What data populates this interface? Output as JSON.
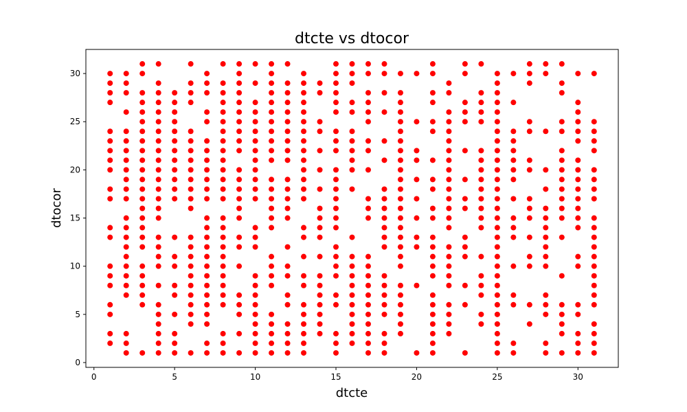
{
  "chart_data": {
    "type": "scatter",
    "title": "dtcte vs dtocor",
    "xlabel": "dtcte",
    "ylabel": "dtocor",
    "xlim": [
      -0.5,
      32.5
    ],
    "ylim": [
      -0.5,
      32.5
    ],
    "xticks": [
      0,
      5,
      10,
      15,
      20,
      25,
      30
    ],
    "yticks": [
      0,
      5,
      10,
      15,
      20,
      25,
      30
    ],
    "grid": false,
    "marker_color": "#ff0000",
    "series": [
      {
        "points_by_x": {
          "1": [
            2,
            3,
            5,
            6,
            8,
            9,
            10,
            13,
            14,
            17,
            18,
            20,
            21,
            22,
            23,
            24,
            27,
            28,
            29,
            30
          ],
          "2": [
            1,
            2,
            3,
            7,
            8,
            9,
            10,
            11,
            12,
            13,
            14,
            15,
            17,
            18,
            19,
            20,
            21,
            22,
            23,
            24,
            26,
            28,
            29,
            30
          ],
          "3": [
            1,
            6,
            7,
            8,
            9,
            10,
            12,
            13,
            14,
            15,
            16,
            17,
            18,
            19,
            20,
            21,
            22,
            23,
            24,
            25,
            26,
            27,
            28,
            30,
            31
          ],
          "4": [
            1,
            2,
            3,
            4,
            5,
            6,
            8,
            10,
            11,
            12,
            13,
            15,
            16,
            17,
            18,
            19,
            20,
            21,
            22,
            23,
            24,
            25,
            26,
            27,
            28,
            29,
            31
          ],
          "5": [
            1,
            2,
            3,
            5,
            7,
            8,
            10,
            11,
            13,
            17,
            18,
            19,
            20,
            21,
            22,
            23,
            24,
            25,
            26,
            27,
            28
          ],
          "6": [
            1,
            4,
            5,
            6,
            7,
            8,
            9,
            10,
            11,
            12,
            13,
            16,
            17,
            18,
            19,
            20,
            21,
            22,
            23,
            24,
            27,
            28,
            29,
            31
          ],
          "7": [
            1,
            2,
            4,
            5,
            6,
            7,
            8,
            9,
            10,
            11,
            12,
            13,
            14,
            15,
            17,
            18,
            19,
            20,
            21,
            22,
            23,
            25,
            26,
            28,
            29,
            30
          ],
          "8": [
            1,
            2,
            3,
            6,
            7,
            8,
            9,
            10,
            11,
            12,
            13,
            14,
            15,
            17,
            18,
            19,
            20,
            21,
            22,
            23,
            24,
            25,
            26,
            27,
            28,
            29,
            31
          ],
          "9": [
            1,
            3,
            5,
            6,
            7,
            10,
            12,
            13,
            15,
            16,
            17,
            18,
            19,
            20,
            22,
            23,
            24,
            25,
            26,
            27,
            28,
            29,
            30,
            31
          ],
          "10": [
            1,
            2,
            3,
            4,
            5,
            6,
            7,
            8,
            9,
            12,
            13,
            14,
            17,
            18,
            19,
            20,
            21,
            22,
            23,
            24,
            25,
            26,
            27,
            29,
            31
          ],
          "11": [
            1,
            2,
            3,
            4,
            5,
            8,
            9,
            10,
            11,
            14,
            15,
            16,
            17,
            18,
            19,
            21,
            22,
            23,
            24,
            25,
            26,
            27,
            28,
            29,
            30,
            31
          ],
          "12": [
            1,
            2,
            3,
            4,
            6,
            7,
            9,
            10,
            12,
            15,
            16,
            17,
            18,
            19,
            21,
            22,
            23,
            24,
            25,
            26,
            27,
            28,
            29,
            31
          ],
          "13": [
            1,
            2,
            3,
            4,
            5,
            6,
            8,
            9,
            11,
            13,
            14,
            17,
            18,
            19,
            20,
            21,
            22,
            23,
            24,
            25,
            26,
            27,
            28,
            29,
            30
          ],
          "14": [
            3,
            4,
            5,
            6,
            7,
            8,
            9,
            11,
            13,
            14,
            15,
            16,
            18,
            20,
            22,
            24,
            25,
            28,
            29
          ],
          "15": [
            1,
            2,
            3,
            6,
            7,
            9,
            10,
            11,
            12,
            14,
            15,
            16,
            17,
            18,
            19,
            20,
            22,
            23,
            24,
            26,
            27,
            28,
            29,
            30,
            31
          ],
          "16": [
            2,
            3,
            4,
            5,
            6,
            7,
            8,
            9,
            10,
            11,
            13,
            18,
            20,
            21,
            22,
            23,
            24,
            26,
            27,
            29,
            30,
            31
          ],
          "17": [
            1,
            2,
            3,
            4,
            5,
            6,
            7,
            8,
            9,
            10,
            11,
            15,
            16,
            17,
            20,
            22,
            23,
            25,
            26,
            27,
            28,
            30,
            31
          ],
          "18": [
            1,
            2,
            3,
            5,
            6,
            7,
            8,
            9,
            12,
            13,
            14,
            15,
            16,
            17,
            18,
            21,
            23,
            26,
            28,
            30,
            31
          ],
          "19": [
            3,
            4,
            5,
            6,
            7,
            8,
            10,
            11,
            12,
            13,
            14,
            15,
            16,
            17,
            18,
            19,
            20,
            21,
            22,
            23,
            24,
            25,
            26,
            27,
            28,
            30
          ],
          "20": [
            1,
            8,
            12,
            13,
            15,
            17,
            19,
            21,
            22,
            25,
            30
          ],
          "21": [
            1,
            2,
            3,
            4,
            5,
            6,
            7,
            9,
            10,
            11,
            12,
            13,
            15,
            16,
            18,
            19,
            21,
            24,
            25,
            27,
            28,
            30,
            31
          ],
          "22": [
            3,
            4,
            5,
            6,
            8,
            9,
            10,
            11,
            12,
            14,
            15,
            16,
            17,
            18,
            19,
            20,
            21,
            22,
            23,
            24,
            25,
            26,
            28,
            29
          ],
          "23": [
            1,
            6,
            8,
            11,
            12,
            13,
            16,
            17,
            19,
            22,
            25,
            26,
            27,
            30,
            31
          ],
          "24": [
            4,
            5,
            7,
            8,
            9,
            11,
            14,
            15,
            16,
            17,
            18,
            19,
            20,
            21,
            22,
            25,
            26,
            27,
            28,
            31
          ],
          "25": [
            1,
            2,
            3,
            4,
            5,
            6,
            7,
            8,
            9,
            10,
            11,
            12,
            13,
            14,
            15,
            16,
            17,
            18,
            19,
            20,
            21,
            22,
            23,
            24,
            25,
            26,
            27,
            28,
            29,
            30
          ],
          "26": [
            1,
            2,
            6,
            7,
            10,
            13,
            14,
            15,
            17,
            19,
            20,
            21,
            22,
            23,
            24,
            27,
            30
          ],
          "27": [
            4,
            6,
            10,
            11,
            13,
            15,
            16,
            17,
            20,
            21,
            24,
            25,
            29,
            30,
            31
          ],
          "28": [
            1,
            2,
            5,
            6,
            7,
            10,
            11,
            12,
            13,
            14,
            15,
            16,
            18,
            20,
            24,
            30,
            31
          ],
          "29": [
            1,
            3,
            4,
            5,
            6,
            9,
            13,
            15,
            16,
            17,
            18,
            19,
            20,
            21,
            22,
            24,
            25,
            28,
            29,
            31
          ],
          "30": [
            1,
            2,
            3,
            5,
            6,
            10,
            11,
            14,
            15,
            16,
            17,
            18,
            19,
            20,
            21,
            23,
            24,
            25,
            26,
            27,
            30
          ],
          "31": [
            1,
            2,
            3,
            4,
            6,
            7,
            8,
            9,
            10,
            11,
            12,
            13,
            14,
            15,
            17,
            18,
            19,
            20,
            22,
            23,
            24,
            25,
            30
          ]
        }
      }
    ]
  }
}
